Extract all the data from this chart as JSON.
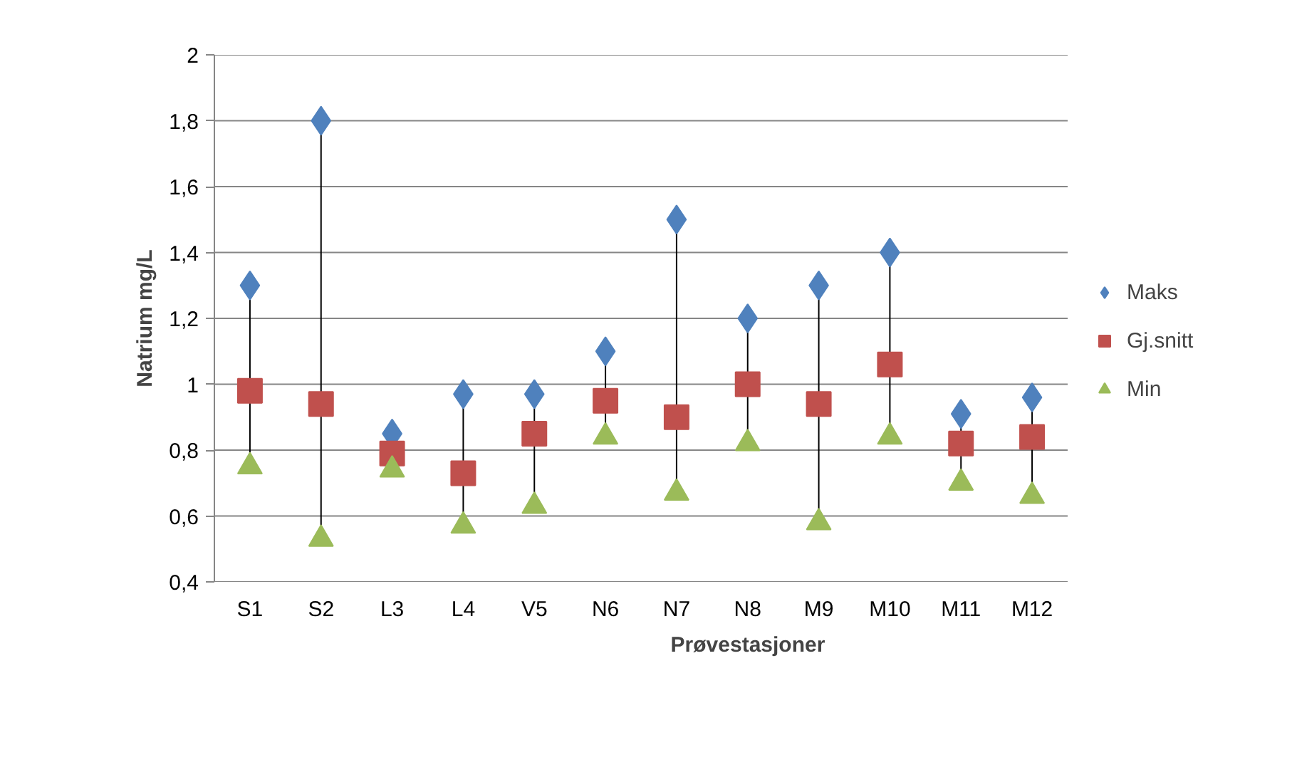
{
  "chart_data": {
    "type": "scatter",
    "xlabel": "Prøvestasjoner",
    "ylabel": "Natrium mg/L",
    "categories": [
      "S1",
      "S2",
      "L3",
      "L4",
      "V5",
      "N6",
      "N7",
      "N8",
      "M9",
      "M10",
      "M11",
      "M12"
    ],
    "series": [
      {
        "name": "Maks",
        "color": "#4f81bd",
        "marker": "diamond",
        "values": [
          1.3,
          1.8,
          0.85,
          0.97,
          0.97,
          1.1,
          1.5,
          1.2,
          1.3,
          1.4,
          0.91,
          0.96
        ]
      },
      {
        "name": "Gj.snitt",
        "color": "#c0504d",
        "marker": "square",
        "values": [
          0.98,
          0.94,
          0.79,
          0.73,
          0.85,
          0.95,
          0.9,
          1.0,
          0.94,
          1.06,
          0.82,
          0.84
        ]
      },
      {
        "name": "Min",
        "color": "#9bbb59",
        "marker": "triangle",
        "values": [
          0.75,
          0.53,
          0.74,
          0.57,
          0.63,
          0.84,
          0.67,
          0.82,
          0.58,
          0.84,
          0.7,
          0.66
        ]
      }
    ],
    "line_style": "none",
    "ylim": [
      0.4,
      2
    ],
    "yticks": [
      {
        "value": 0.4,
        "label": "0,4"
      },
      {
        "value": 0.6,
        "label": "0,6"
      },
      {
        "value": 0.8,
        "label": "0,8"
      },
      {
        "value": 1,
        "label": "1"
      },
      {
        "value": 1.2,
        "label": "1,2"
      },
      {
        "value": 1.4,
        "label": "1,4"
      },
      {
        "value": 1.6,
        "label": "1,6"
      },
      {
        "value": 1.8,
        "label": "1,8"
      },
      {
        "value": 2,
        "label": "2"
      }
    ],
    "grid": "y",
    "legend": "right"
  }
}
